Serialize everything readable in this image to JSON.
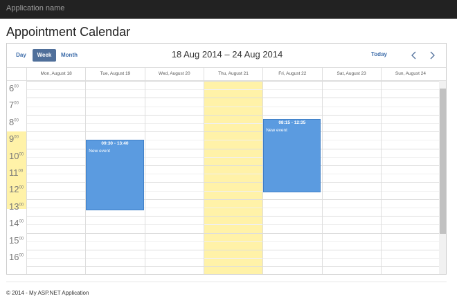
{
  "header": {
    "app_name": "Application name"
  },
  "title": "Appointment Calendar",
  "calendar": {
    "views": [
      "Day",
      "Week",
      "Month"
    ],
    "range": "18 Aug 2014 – 24 Aug 2014",
    "today": "Today",
    "days": [
      "Mon, August 18",
      "Tue, August 19",
      "Wed, August 20",
      "Thu, August 21",
      "Fri, August 22",
      "Sat, August 23",
      "Sun, August 24"
    ],
    "hours": [
      "6",
      "7",
      "8",
      "9",
      "10",
      "11",
      "12",
      "13",
      "14",
      "15",
      "16"
    ],
    "minutes": "00",
    "events": [
      {
        "time": "09:30 - 13:40",
        "title": "New event"
      },
      {
        "time": "08:15 - 12:35",
        "title": "New event"
      }
    ]
  },
  "footer": "© 2014 - My ASP.NET Application"
}
